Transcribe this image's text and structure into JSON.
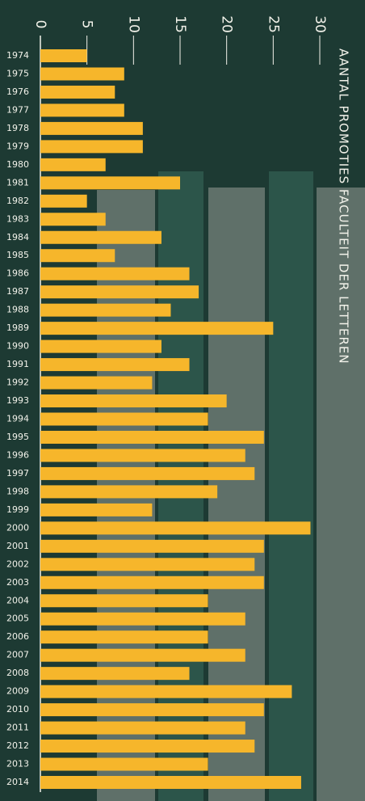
{
  "chart_data": {
    "type": "barh",
    "title": "AANTAL PROMOTIES FACULTEIT DER LETTEREN",
    "categories": [
      "1974",
      "1975",
      "1976",
      "1977",
      "1978",
      "1979",
      "1980",
      "1981",
      "1982",
      "1983",
      "1984",
      "1985",
      "1986",
      "1987",
      "1988",
      "1989",
      "1990",
      "1991",
      "1992",
      "1993",
      "1994",
      "1995",
      "1996",
      "1997",
      "1998",
      "1999",
      "2000",
      "2001",
      "2002",
      "2003",
      "2004",
      "2005",
      "2006",
      "2007",
      "2008",
      "2009",
      "2010",
      "2011",
      "2012",
      "2013",
      "2014"
    ],
    "values": [
      5,
      9,
      8,
      9,
      11,
      11,
      7,
      15,
      5,
      7,
      13,
      8,
      16,
      17,
      14,
      25,
      13,
      16,
      12,
      20,
      18,
      24,
      22,
      23,
      19,
      12,
      29,
      24,
      23,
      24,
      18,
      22,
      18,
      22,
      16,
      27,
      24,
      22,
      23,
      18,
      28
    ],
    "color": "#f6b62b",
    "xlim": [
      0,
      30
    ],
    "xticks": [
      0,
      5,
      10,
      15,
      20,
      25,
      30
    ]
  }
}
